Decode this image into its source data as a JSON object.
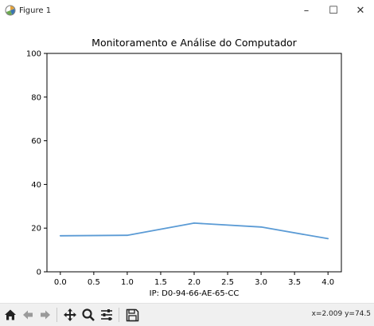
{
  "window": {
    "title": "Figure 1",
    "minimize_glyph": "–",
    "maximize_glyph": "☐",
    "close_glyph": "✕"
  },
  "icons": {
    "app": "matplotlib-figure-icon",
    "home": "home-icon",
    "back": "arrow-left-icon",
    "forward": "arrow-right-icon",
    "pan": "pan-move-icon",
    "zoom": "zoom-magnifier-icon",
    "configure": "configure-subplots-icon",
    "save": "save-floppy-icon"
  },
  "toolbar": {
    "coords_text": "x=2.009 y=74.5"
  },
  "chart_data": {
    "type": "line",
    "title": "Monitoramento e Análise do Computador",
    "xlabel": "IP: D0-94-66-AE-65-CC",
    "ylabel": "",
    "xlim": [
      -0.2,
      4.2
    ],
    "ylim": [
      0,
      100
    ],
    "x_ticks": [
      0.0,
      0.5,
      1.0,
      1.5,
      2.0,
      2.5,
      3.0,
      3.5,
      4.0
    ],
    "x_tick_labels": [
      "0.0",
      "0.5",
      "1.0",
      "1.5",
      "2.0",
      "2.5",
      "3.0",
      "3.5",
      "4.0"
    ],
    "y_ticks": [
      0,
      20,
      40,
      60,
      80,
      100
    ],
    "y_tick_labels": [
      "0",
      "20",
      "40",
      "60",
      "80",
      "100"
    ],
    "grid": false,
    "series": [
      {
        "x": [
          0,
          1,
          2,
          3,
          4
        ],
        "values": [
          16.5,
          16.7,
          22.3,
          20.5,
          15.2
        ],
        "color": "#5b9bd5"
      }
    ]
  }
}
